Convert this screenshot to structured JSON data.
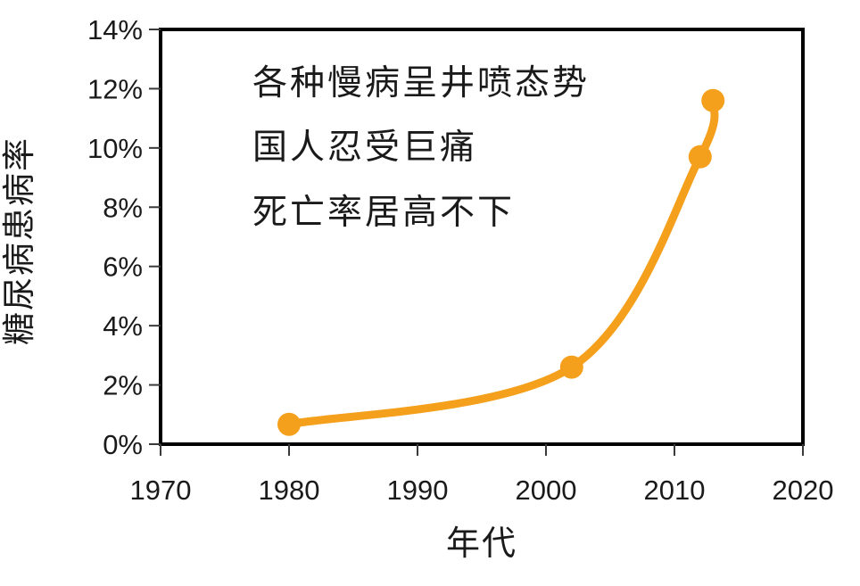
{
  "chart_data": {
    "type": "line",
    "title": "",
    "xlabel": "年代",
    "ylabel": "糖尿病患病率",
    "xlim": [
      1970,
      2020
    ],
    "ylim": [
      0,
      14
    ],
    "grid": false,
    "legend": "none",
    "x_ticks": [
      {
        "v": 1970,
        "label": "1970"
      },
      {
        "v": 1980,
        "label": "1980"
      },
      {
        "v": 1990,
        "label": "1990"
      },
      {
        "v": 2000,
        "label": "2000"
      },
      {
        "v": 2010,
        "label": "2010"
      },
      {
        "v": 2020,
        "label": "2020"
      }
    ],
    "y_ticks": [
      {
        "v": 0,
        "label": "0%"
      },
      {
        "v": 2,
        "label": "2%"
      },
      {
        "v": 4,
        "label": "4%"
      },
      {
        "v": 6,
        "label": "6%"
      },
      {
        "v": 8,
        "label": "8%"
      },
      {
        "v": 10,
        "label": "10%"
      },
      {
        "v": 12,
        "label": "12%"
      },
      {
        "v": 14,
        "label": "14%"
      }
    ],
    "series": [
      {
        "name": "糖尿病患病率",
        "color": "#F5A01C",
        "marker_color": "#F5A01C",
        "points": [
          {
            "x": 1980,
            "y": 0.67
          },
          {
            "x": 2002,
            "y": 2.6
          },
          {
            "x": 2012,
            "y": 9.7
          },
          {
            "x": 2013,
            "y": 11.6
          }
        ]
      }
    ],
    "annotation": [
      "各种慢病呈井喷态势",
      "国人忍受巨痛",
      "死亡率居高不下"
    ],
    "colors": {
      "axis": "#000000",
      "tick": "#3a3a3a",
      "text": "#1a1a1a",
      "background": "#ffffff"
    }
  }
}
